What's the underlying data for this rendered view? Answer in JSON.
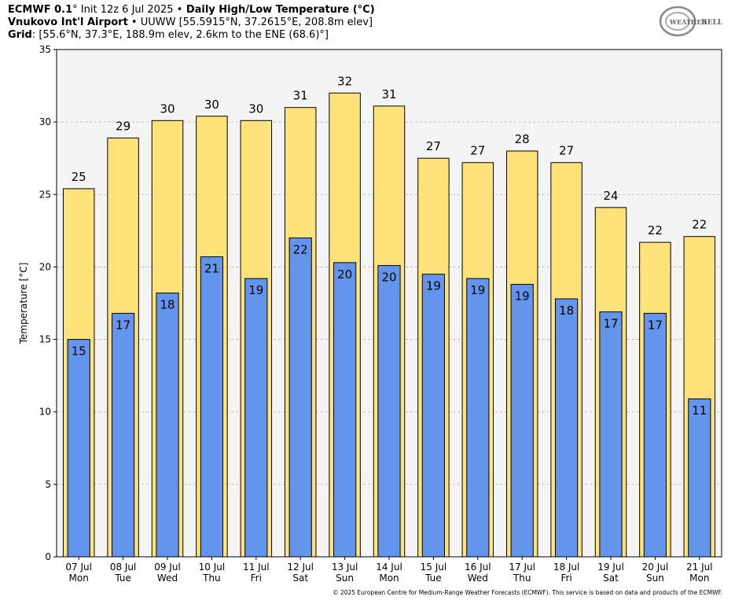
{
  "header": {
    "line1_bold1": "ECMWF 0.1",
    "line1_deg": "°",
    "line1_mid": " Init 12z 6 Jul 2025 ",
    "line1_bullet": "•",
    "line1_bold2": " Daily High/Low Temperature (°C)",
    "line2_bold": "Vnukovo Int'l Airport",
    "line2_rest": " • UUWW [55.5915°N, 37.2615°E, 208.8m elev]",
    "line3_bold": "Grid",
    "line3_rest": ": [55.6°N, 37.3°E, 188.9m elev, 2.6km to the ENE (68.6)°]"
  },
  "logo": {
    "text_weather": "WEATHER",
    "text_bell": "BELL",
    "icon": "weatherbell-logo"
  },
  "credit": "© 2025 European Centre for Medium-Range Weather Forecasts (ECMWF). This service is based on data and products of the ECMWF.",
  "chart_data": {
    "type": "bar",
    "ylabel": "Temperature [°C]",
    "ylim": [
      0,
      35
    ],
    "yticks": [
      0,
      5,
      10,
      15,
      20,
      25,
      30,
      35
    ],
    "grid": true,
    "categories": [
      "07 Jul",
      "08 Jul",
      "09 Jul",
      "10 Jul",
      "11 Jul",
      "12 Jul",
      "13 Jul",
      "14 Jul",
      "15 Jul",
      "16 Jul",
      "17 Jul",
      "18 Jul",
      "19 Jul",
      "20 Jul",
      "21 Jul"
    ],
    "weekdays": [
      "Mon",
      "Tue",
      "Wed",
      "Thu",
      "Fri",
      "Sat",
      "Sun",
      "Mon",
      "Tue",
      "Wed",
      "Thu",
      "Fri",
      "Sat",
      "Sun",
      "Mon"
    ],
    "series": [
      {
        "values": [
          25.4,
          28.9,
          30.1,
          30.4,
          30.1,
          31.0,
          32.0,
          31.1,
          27.5,
          27.2,
          28.0,
          27.2,
          24.1,
          21.7,
          22.1
        ],
        "labels": [
          "25",
          "29",
          "30",
          "30",
          "30",
          "31",
          "32",
          "31",
          "27",
          "27",
          "28",
          "27",
          "24",
          "22",
          "22"
        ],
        "color": "#ffe27a"
      },
      {
        "values": [
          15.0,
          16.8,
          18.2,
          20.7,
          19.2,
          22.0,
          20.3,
          20.1,
          19.5,
          19.2,
          18.8,
          17.8,
          16.9,
          16.8,
          10.9
        ],
        "labels": [
          "15",
          "17",
          "18",
          "21",
          "19",
          "22",
          "20",
          "20",
          "19",
          "19",
          "19",
          "18",
          "17",
          "17",
          "11"
        ],
        "color": "#6495ed"
      }
    ],
    "plot_bg": "#f4f4f4"
  }
}
